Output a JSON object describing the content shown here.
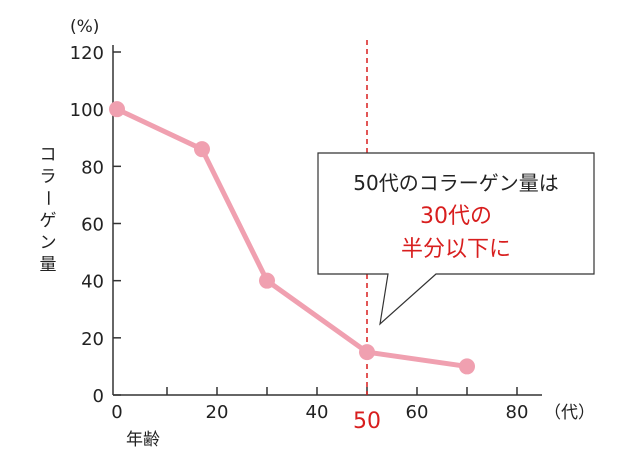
{
  "chart_data": {
    "type": "line",
    "x": [
      0,
      17,
      30,
      50,
      70
    ],
    "values": [
      100,
      86,
      40,
      15,
      10
    ],
    "xticks": [
      0,
      20,
      40,
      50,
      60,
      80
    ],
    "yticks": [
      0,
      20,
      40,
      60,
      80,
      100,
      120
    ],
    "xlim": [
      0,
      80
    ],
    "ylim": [
      0,
      120
    ],
    "xlabel": "年齢",
    "x_unit": "（代）",
    "ylabel": "コラーゲン量",
    "y_unit": "(%)",
    "highlight_x": 50,
    "highlight_tick_label": "50",
    "grid": false,
    "annotation": {
      "line1": "50代のコラーゲン量は",
      "line2": "30代の",
      "line3": "半分以下に"
    },
    "colors": {
      "series": "#f0a0b0",
      "marker": "#f0a0b0",
      "highlight": "#d81e1e",
      "axis": "#333333"
    }
  }
}
